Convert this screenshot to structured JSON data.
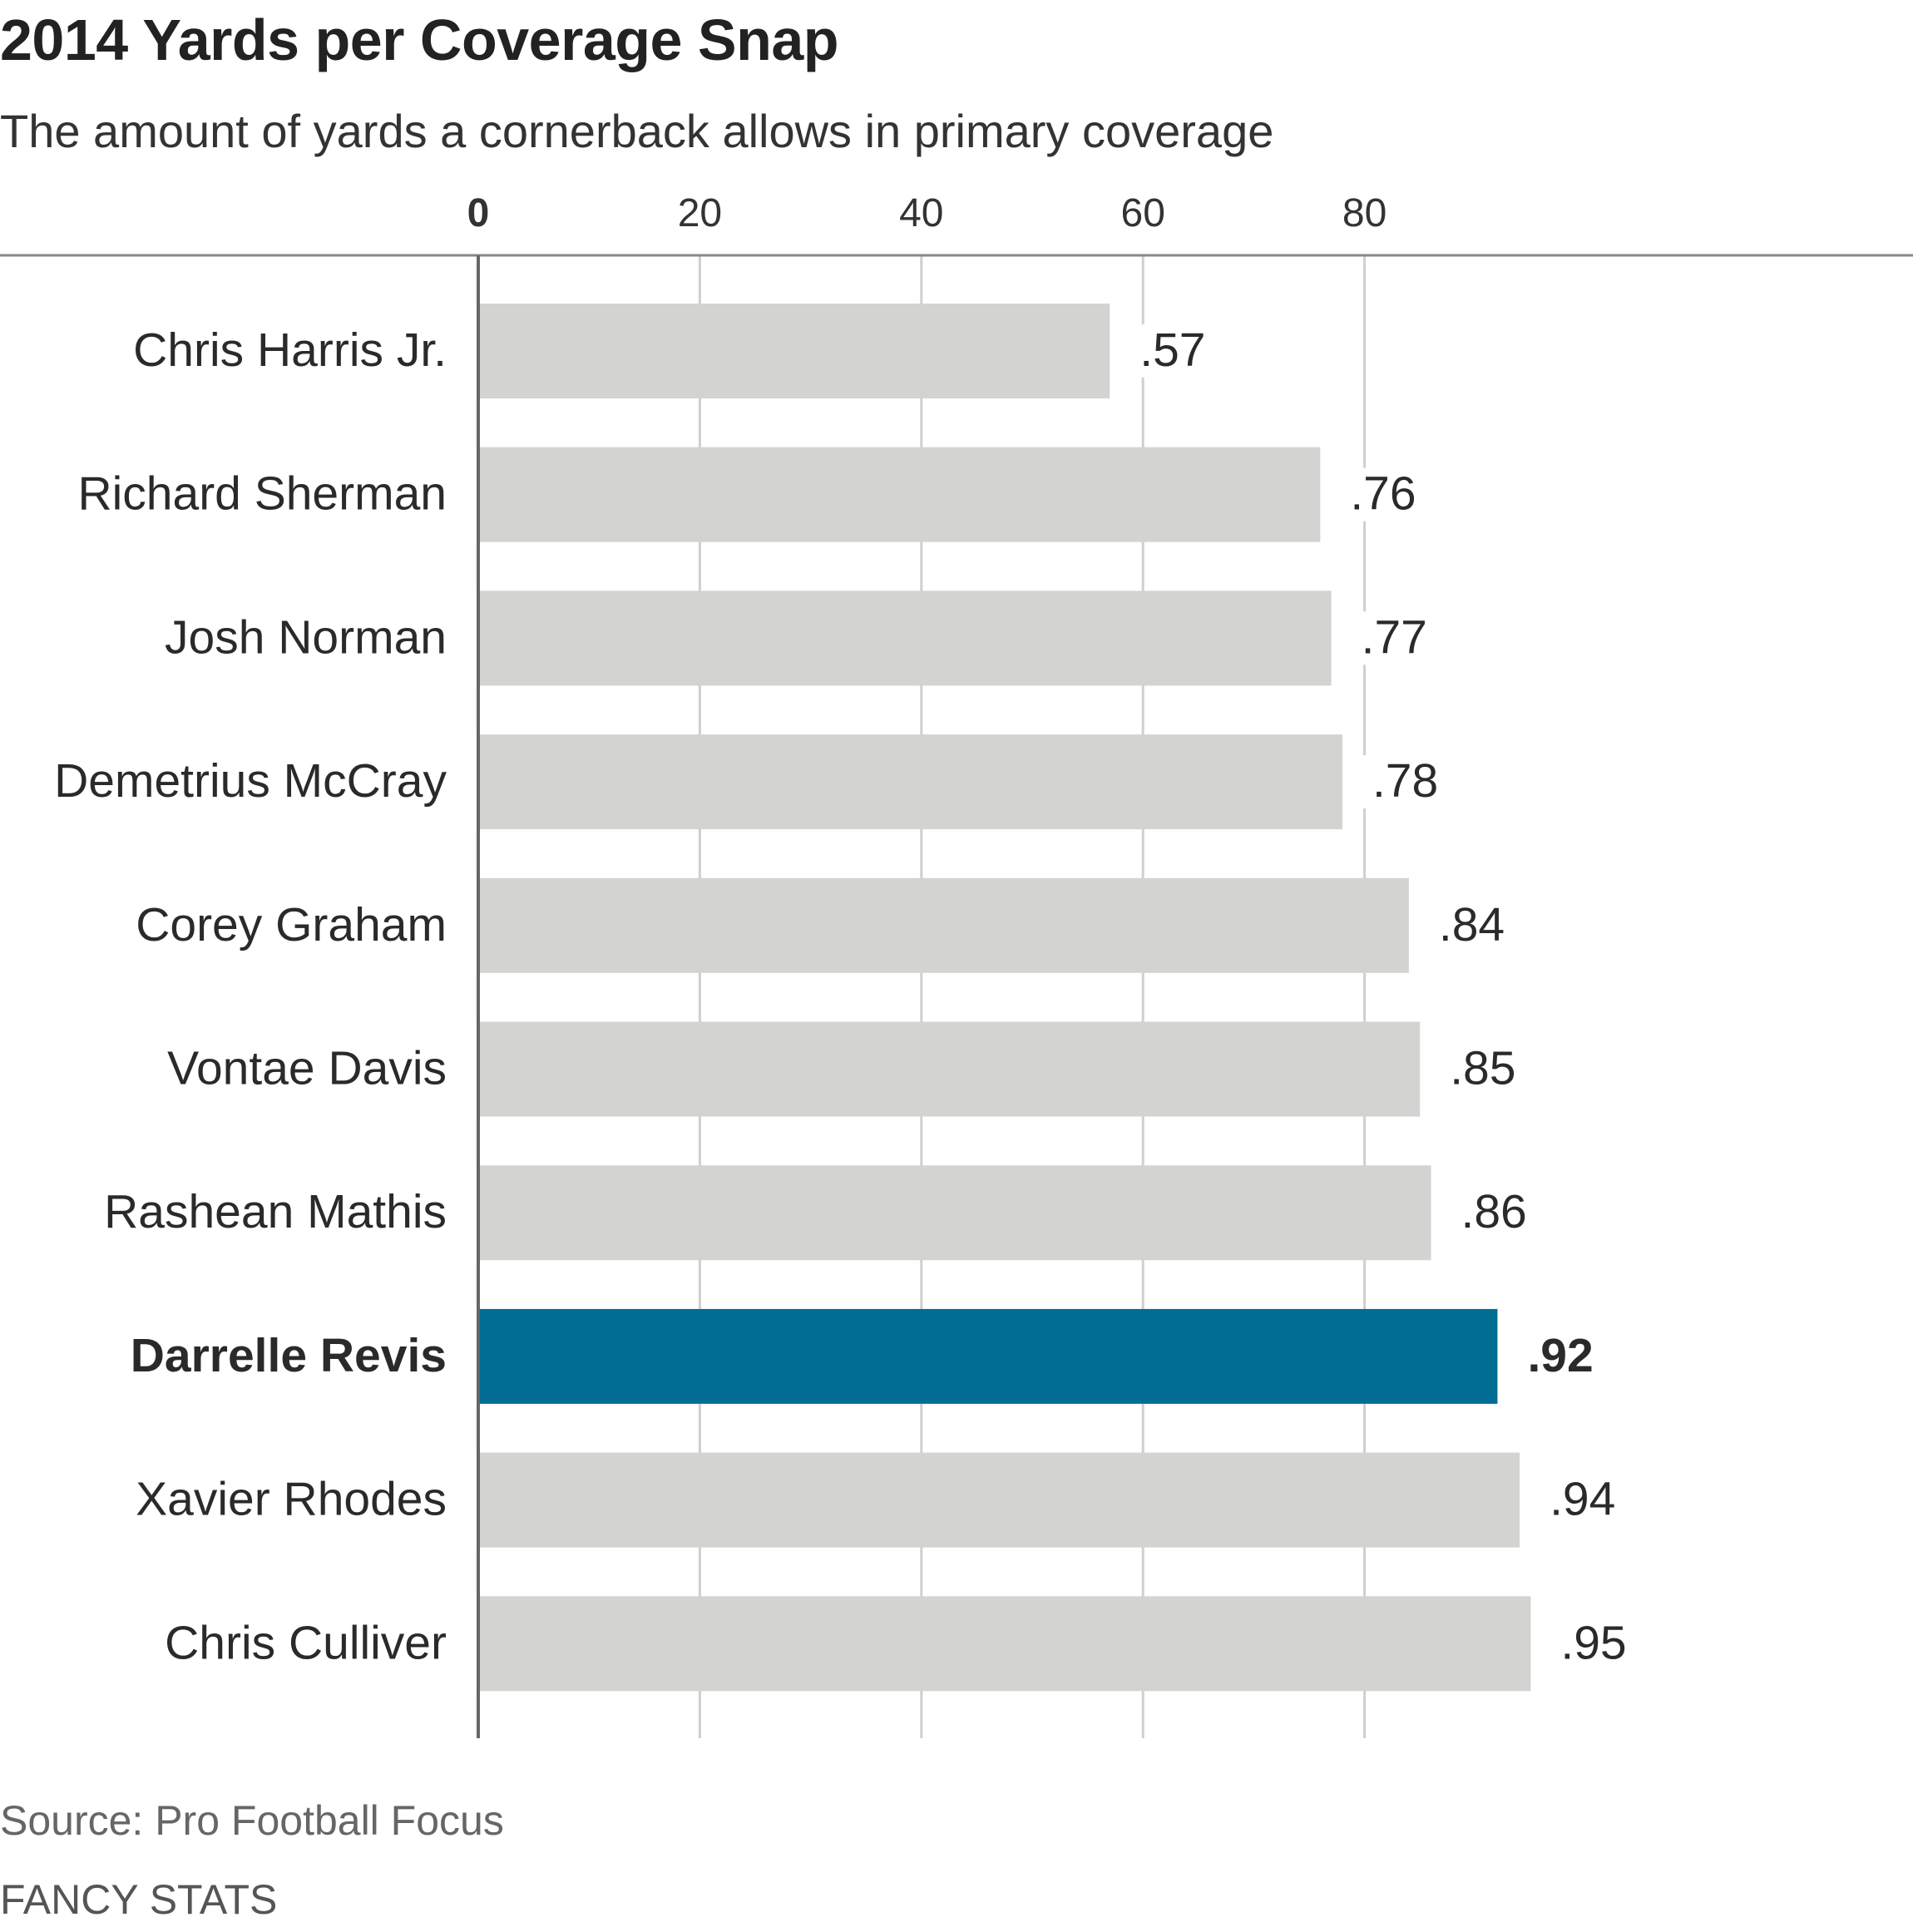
{
  "header": {
    "title": "2014 Yards per Coverage Snap",
    "subtitle": "The amount of yards a cornerback allows in primary coverage"
  },
  "footer": {
    "source": "Source: Pro Football Focus",
    "credit": "FANCY STATS"
  },
  "colors": {
    "bar": "#d3d3d1",
    "highlight": "#026d93",
    "grid": "#cfcfcf",
    "axis": "#888888",
    "text": "#2a2a2a"
  },
  "chart_data": {
    "type": "bar",
    "orientation": "horizontal",
    "title": "2014 Yards per Coverage Snap",
    "subtitle": "The amount of yards a cornerback allows in primary coverage",
    "xlim": [
      0,
      100
    ],
    "xticks": [
      "0",
      "20",
      "40",
      "60",
      "80"
    ],
    "grid": true,
    "highlight": "Darrelle Revis",
    "categories": [
      "Chris Harris Jr.",
      "Richard Sherman",
      "Josh Norman",
      "Demetrius McCray",
      "Corey Graham",
      "Vontae Davis",
      "Rashean Mathis",
      "Darrelle Revis",
      "Xavier Rhodes",
      "Chris Culliver"
    ],
    "values": [
      0.57,
      0.76,
      0.77,
      0.78,
      0.84,
      0.85,
      0.86,
      0.92,
      0.94,
      0.95
    ],
    "value_labels": [
      ".57",
      ".76",
      ".77",
      ".78",
      ".84",
      ".85",
      ".86",
      ".92",
      ".94",
      ".95"
    ]
  }
}
